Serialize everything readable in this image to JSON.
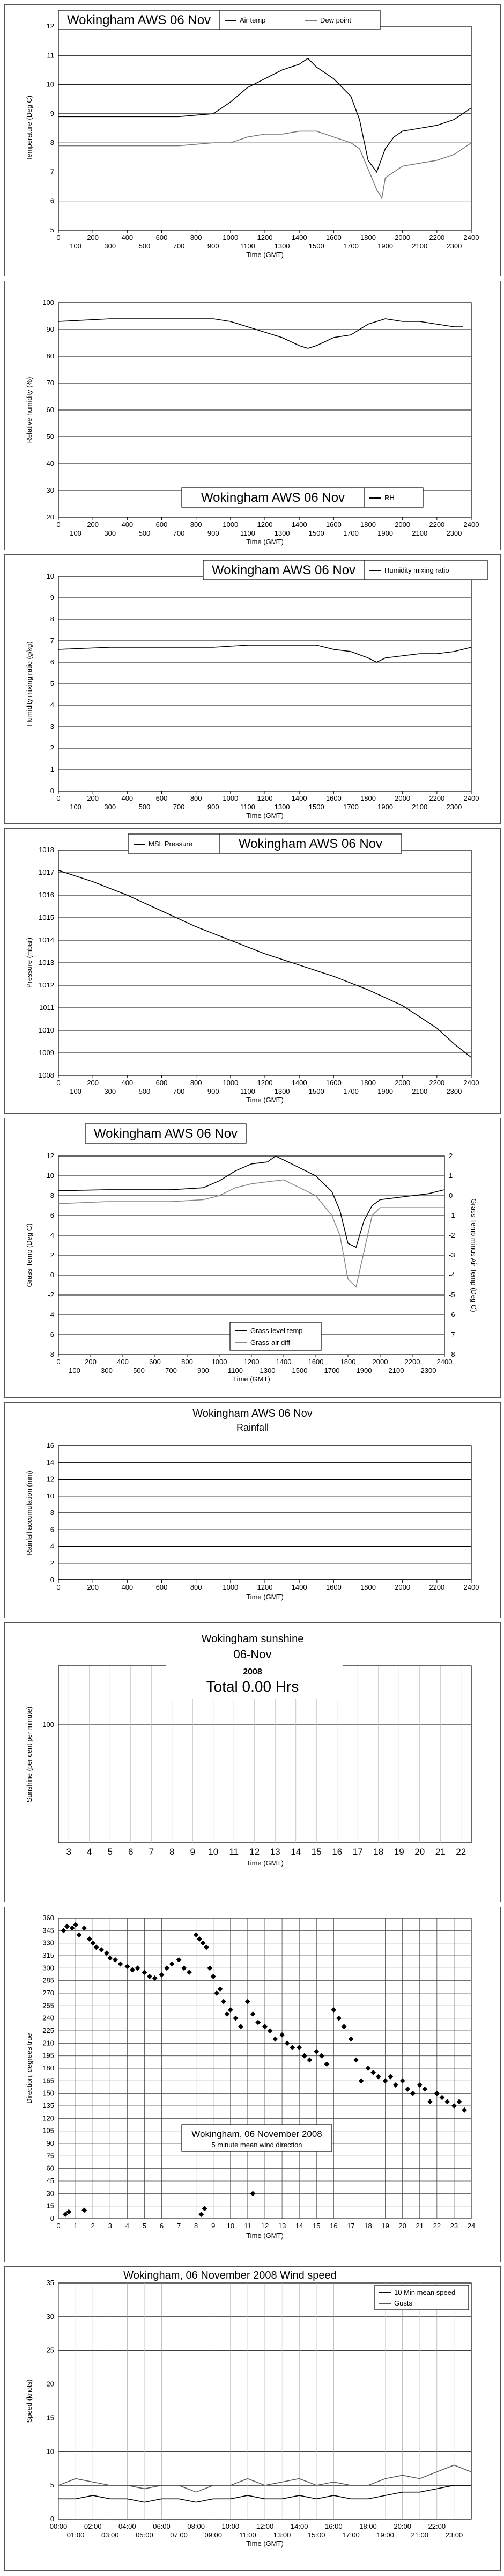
{
  "chart_data": [
    {
      "type": "line",
      "title": "Wokingham AWS 06 Nov",
      "xlabel": "Time (GMT)",
      "ylabel": "Temperature (Deg C)",
      "ylim": [
        5,
        12
      ],
      "xlim": [
        0,
        2400
      ],
      "yticks": [
        5,
        6,
        7,
        8,
        9,
        10,
        11,
        12
      ],
      "xticks_top": [
        "0",
        "200",
        "400",
        "600",
        "800",
        "1000",
        "1200",
        "1400",
        "1600",
        "1800",
        "2000",
        "2200",
        "2400"
      ],
      "xticks_bottom": [
        "100",
        "300",
        "500",
        "700",
        "900",
        "1100",
        "1300",
        "1500",
        "1700",
        "1900",
        "2100",
        "2300"
      ],
      "series": [
        {
          "name": "Air temp",
          "color": "#000000",
          "x": [
            0,
            300,
            700,
            900,
            1000,
            1100,
            1200,
            1300,
            1400,
            1450,
            1500,
            1600,
            1700,
            1750,
            1800,
            1850,
            1900,
            1950,
            2000,
            2100,
            2200,
            2300,
            2400
          ],
          "y": [
            8.9,
            8.9,
            8.9,
            9.0,
            9.4,
            9.9,
            10.2,
            10.5,
            10.7,
            10.9,
            10.6,
            10.2,
            9.6,
            8.8,
            7.4,
            7.0,
            7.8,
            8.2,
            8.4,
            8.5,
            8.6,
            8.8,
            9.2
          ]
        },
        {
          "name": "Dew point",
          "color": "#777777",
          "x": [
            0,
            300,
            700,
            900,
            1000,
            1100,
            1200,
            1300,
            1400,
            1500,
            1600,
            1700,
            1750,
            1800,
            1850,
            1880,
            1900,
            2000,
            2100,
            2200,
            2300,
            2400
          ],
          "y": [
            7.9,
            7.9,
            7.9,
            8.0,
            8.0,
            8.2,
            8.3,
            8.3,
            8.4,
            8.4,
            8.2,
            8.0,
            7.8,
            7.1,
            6.4,
            6.1,
            6.8,
            7.2,
            7.3,
            7.4,
            7.6,
            8.0
          ]
        }
      ]
    },
    {
      "type": "line",
      "title": "Wokingham AWS 06 Nov",
      "xlabel": "Time (GMT)",
      "ylabel": "Relative humidity (%)",
      "ylim": [
        20,
        100
      ],
      "xlim": [
        0,
        2400
      ],
      "yticks": [
        20,
        30,
        40,
        50,
        60,
        70,
        80,
        90,
        100
      ],
      "xticks_top": [
        "0",
        "200",
        "400",
        "600",
        "800",
        "1000",
        "1200",
        "1400",
        "1600",
        "1800",
        "2000",
        "2200",
        "2400"
      ],
      "xticks_bottom": [
        "100",
        "300",
        "500",
        "700",
        "900",
        "1100",
        "1300",
        "1500",
        "1700",
        "1900",
        "2100",
        "2300"
      ],
      "series": [
        {
          "name": "RH",
          "color": "#000000",
          "x": [
            0,
            300,
            600,
            900,
            1000,
            1100,
            1200,
            1300,
            1400,
            1450,
            1500,
            1600,
            1700,
            1800,
            1900,
            2000,
            2100,
            2200,
            2300,
            2350
          ],
          "y": [
            93,
            94,
            94,
            94,
            93,
            91,
            89,
            87,
            84,
            83,
            84,
            87,
            88,
            92,
            94,
            93,
            93,
            92,
            91,
            91
          ]
        }
      ]
    },
    {
      "type": "line",
      "title": "Wokingham AWS 06 Nov",
      "xlabel": "Time (GMT)",
      "ylabel": "Humidity mixing ratio (g/kg)",
      "ylim": [
        0,
        10
      ],
      "xlim": [
        0,
        2400
      ],
      "yticks": [
        0,
        1,
        2,
        3,
        4,
        5,
        6,
        7,
        8,
        9,
        10
      ],
      "xticks_top": [
        "0",
        "200",
        "400",
        "600",
        "800",
        "1000",
        "1200",
        "1400",
        "1600",
        "1800",
        "2000",
        "2200",
        "2400"
      ],
      "xticks_bottom": [
        "100",
        "300",
        "500",
        "700",
        "900",
        "1100",
        "1300",
        "1500",
        "1700",
        "1900",
        "2100",
        "2300"
      ],
      "series": [
        {
          "name": "Humidity mixing ratio",
          "color": "#000000",
          "x": [
            0,
            300,
            600,
            900,
            1100,
            1300,
            1500,
            1600,
            1700,
            1800,
            1850,
            1900,
            2000,
            2100,
            2200,
            2300,
            2400
          ],
          "y": [
            6.6,
            6.7,
            6.7,
            6.7,
            6.8,
            6.8,
            6.8,
            6.6,
            6.5,
            6.2,
            6.0,
            6.2,
            6.3,
            6.4,
            6.4,
            6.5,
            6.7
          ]
        }
      ]
    },
    {
      "type": "line",
      "title": "Wokingham AWS 06 Nov",
      "xlabel": "Time (GMT)",
      "ylabel": "Pressure (mbar)",
      "ylim": [
        1008,
        1018
      ],
      "xlim": [
        0,
        2400
      ],
      "yticks": [
        1008,
        1009,
        1010,
        1011,
        1012,
        1013,
        1014,
        1015,
        1016,
        1017,
        1018
      ],
      "xticks_top": [
        "0",
        "200",
        "400",
        "600",
        "800",
        "1000",
        "1200",
        "1400",
        "1600",
        "1800",
        "2000",
        "2200",
        "2400"
      ],
      "xticks_bottom": [
        "100",
        "300",
        "500",
        "700",
        "900",
        "1100",
        "1300",
        "1500",
        "1700",
        "1900",
        "2100",
        "2300"
      ],
      "series": [
        {
          "name": "MSL Pressure",
          "color": "#000000",
          "x": [
            0,
            200,
            400,
            600,
            800,
            1000,
            1200,
            1400,
            1600,
            1800,
            2000,
            2200,
            2300,
            2400
          ],
          "y": [
            1017.1,
            1016.6,
            1016.0,
            1015.3,
            1014.6,
            1014.0,
            1013.4,
            1012.9,
            1012.4,
            1011.8,
            1011.1,
            1010.1,
            1009.4,
            1008.8
          ]
        }
      ]
    },
    {
      "type": "line",
      "title": "Wokingham AWS 06 Nov",
      "xlabel": "Time (GMT)",
      "ylabel": "Grass Temp (Deg C)",
      "ylabel_right": "Grass Temp minus Air Temp (Deg C)",
      "ylim": [
        -8,
        12
      ],
      "ylim_right": [
        -8,
        2
      ],
      "xlim": [
        0,
        2400
      ],
      "yticks": [
        -8,
        -6,
        -4,
        -2,
        0,
        2,
        4,
        6,
        8,
        10,
        12
      ],
      "yticks_right": [
        -8,
        -7,
        -6,
        -5,
        -4,
        -3,
        -2,
        -1,
        0,
        1,
        2
      ],
      "xticks_top": [
        "0",
        "200",
        "400",
        "600",
        "800",
        "1000",
        "1200",
        "1400",
        "1600",
        "1800",
        "2000",
        "2200",
        "2400"
      ],
      "xticks_bottom": [
        "100",
        "300",
        "500",
        "700",
        "900",
        "1100",
        "1300",
        "1500",
        "1700",
        "1900",
        "2100",
        "2300"
      ],
      "series": [
        {
          "name": "Grass level temp",
          "color": "#000000",
          "axis": "left",
          "x": [
            0,
            300,
            700,
            900,
            1000,
            1100,
            1200,
            1300,
            1350,
            1400,
            1500,
            1600,
            1700,
            1750,
            1800,
            1850,
            1900,
            1950,
            2000,
            2100,
            2200,
            2300,
            2400
          ],
          "y": [
            8.5,
            8.6,
            8.6,
            8.8,
            9.5,
            10.5,
            11.2,
            11.4,
            12.0,
            11.6,
            10.8,
            10.0,
            8.4,
            6.5,
            3.2,
            2.8,
            5.5,
            7.0,
            7.6,
            7.8,
            8.0,
            8.2,
            8.6
          ]
        },
        {
          "name": "Grass-air diff",
          "color": "#888888",
          "axis": "right",
          "x": [
            0,
            300,
            700,
            900,
            1000,
            1100,
            1200,
            1300,
            1400,
            1500,
            1600,
            1700,
            1750,
            1800,
            1850,
            1900,
            1950,
            2000,
            2100,
            2200,
            2300,
            2400
          ],
          "y": [
            -0.4,
            -0.3,
            -0.3,
            -0.2,
            0.0,
            0.4,
            0.6,
            0.7,
            0.8,
            0.4,
            0.0,
            -1.0,
            -2.0,
            -4.2,
            -4.6,
            -2.8,
            -1.0,
            -0.6,
            -0.6,
            -0.6,
            -0.6,
            -0.6
          ]
        }
      ]
    },
    {
      "type": "line",
      "title": "Wokingham AWS 06 Nov",
      "subtitle": "Rainfall",
      "xlabel": "Time (GMT)",
      "ylabel": "Rainfall accumulation (mm)",
      "ylim": [
        0,
        16
      ],
      "xlim": [
        0,
        2400
      ],
      "yticks": [
        0,
        2,
        4,
        6,
        8,
        10,
        12,
        14,
        16
      ],
      "xticks": [
        "0",
        "200",
        "400",
        "600",
        "800",
        "1000",
        "1200",
        "1400",
        "1600",
        "1800",
        "2000",
        "2200",
        "2400"
      ],
      "series": [
        {
          "name": "",
          "color": "#000000",
          "x": [
            0,
            2400
          ],
          "y": [
            0,
            0
          ]
        }
      ]
    },
    {
      "type": "bar",
      "title": "Wokingham sunshine",
      "date": "06-Nov",
      "year": "2008",
      "total": "Total 0.00 Hrs",
      "xlabel": "Time (GMT)",
      "ylabel": "Sunshine (per cent per minute)",
      "ylim": [
        0,
        150
      ],
      "yticks": [
        100
      ],
      "categories": [
        "3",
        "4",
        "5",
        "6",
        "7",
        "8",
        "9",
        "10",
        "11",
        "12",
        "13",
        "14",
        "15",
        "16",
        "17",
        "18",
        "19",
        "20",
        "21",
        "22"
      ],
      "values": [
        0,
        0,
        0,
        0,
        0,
        0,
        0,
        0,
        0,
        0,
        0,
        0,
        0,
        0,
        0,
        0,
        0,
        0,
        0,
        0
      ]
    },
    {
      "type": "scatter",
      "title": "Wokingham,  06 November 2008",
      "subtitle": "5 minute mean wind direction",
      "xlabel": "Time (GMT)",
      "ylabel": "Direction, degrees true",
      "ylim": [
        0,
        360
      ],
      "xlim": [
        0,
        24
      ],
      "yticks": [
        0,
        15,
        30,
        45,
        60,
        75,
        90,
        105,
        120,
        135,
        150,
        165,
        180,
        195,
        210,
        225,
        240,
        255,
        270,
        285,
        300,
        315,
        330,
        345,
        360
      ],
      "xticks": [
        "0",
        "1",
        "2",
        "3",
        "4",
        "5",
        "6",
        "7",
        "8",
        "9",
        "10",
        "11",
        "12",
        "13",
        "14",
        "15",
        "16",
        "17",
        "18",
        "19",
        "20",
        "21",
        "22",
        "23",
        "24"
      ],
      "series": [
        {
          "name": "",
          "color": "#000000",
          "x": [
            0.3,
            0.5,
            0.8,
            1.0,
            1.2,
            1.5,
            1.8,
            2.0,
            2.2,
            2.5,
            2.8,
            3.0,
            3.3,
            3.6,
            4.0,
            4.3,
            4.6,
            5.0,
            5.3,
            5.6,
            6.0,
            6.3,
            6.6,
            7.0,
            7.3,
            7.6,
            8.0,
            8.2,
            8.4,
            8.6,
            8.8,
            9.0,
            9.2,
            9.4,
            9.6,
            9.8,
            10.0,
            10.3,
            10.6,
            11.0,
            11.3,
            11.6,
            12.0,
            12.3,
            12.6,
            13.0,
            13.3,
            13.6,
            14.0,
            14.3,
            14.6,
            15.0,
            15.3,
            15.6,
            16.0,
            16.3,
            16.6,
            17.0,
            17.3,
            17.6,
            18.0,
            18.3,
            18.6,
            19.0,
            19.3,
            19.6,
            20.0,
            20.3,
            20.6,
            21.0,
            21.3,
            21.6,
            22.0,
            22.3,
            22.6,
            23.0,
            23.3,
            23.6,
            0.4,
            0.6,
            1.5,
            8.3,
            8.5,
            11.3
          ],
          "y": [
            345,
            350,
            348,
            352,
            340,
            348,
            335,
            330,
            325,
            322,
            318,
            312,
            310,
            305,
            302,
            298,
            300,
            295,
            290,
            288,
            292,
            300,
            305,
            310,
            300,
            295,
            340,
            335,
            330,
            325,
            300,
            290,
            270,
            275,
            260,
            245,
            250,
            240,
            230,
            260,
            245,
            235,
            230,
            225,
            215,
            220,
            210,
            205,
            205,
            195,
            190,
            200,
            195,
            185,
            250,
            240,
            230,
            215,
            190,
            165,
            180,
            175,
            170,
            165,
            170,
            160,
            165,
            155,
            150,
            160,
            155,
            140,
            150,
            145,
            140,
            135,
            140,
            130,
            5,
            8,
            10,
            5,
            12,
            30
          ]
        }
      ]
    },
    {
      "type": "line",
      "title": "Wokingham,  06 November 2008    Wind speed",
      "xlabel": "Time (GMT)",
      "ylabel": "Speed (knots)",
      "ylim": [
        0,
        35
      ],
      "xlim": [
        0,
        24
      ],
      "yticks": [
        0,
        5,
        10,
        15,
        20,
        25,
        30,
        35
      ],
      "xticks_top": [
        "00:00",
        "02:00",
        "04:00",
        "06:00",
        "08:00",
        "10:00",
        "12:00",
        "14:00",
        "16:00",
        "18:00",
        "20:00",
        "22:00"
      ],
      "xticks_bottom": [
        "01:00",
        "03:00",
        "05:00",
        "07:00",
        "09:00",
        "11:00",
        "13:00",
        "15:00",
        "17:00",
        "19:00",
        "21:00",
        "23:00"
      ],
      "series": [
        {
          "name": "10 Min mean speed",
          "color": "#000000",
          "x": [
            0,
            1,
            2,
            3,
            4,
            5,
            6,
            7,
            8,
            9,
            10,
            11,
            12,
            13,
            14,
            15,
            16,
            17,
            18,
            19,
            20,
            21,
            22,
            23,
            24
          ],
          "y": [
            3,
            3,
            3.5,
            3,
            3,
            2.5,
            3,
            3,
            2.5,
            3,
            3,
            3.5,
            3,
            3,
            3.5,
            3,
            3.5,
            3,
            3,
            3.5,
            4,
            4,
            4.5,
            5,
            5
          ]
        },
        {
          "name": "Gusts",
          "color": "#555555",
          "x": [
            0,
            1,
            2,
            3,
            4,
            5,
            6,
            7,
            8,
            9,
            10,
            11,
            12,
            13,
            14,
            15,
            16,
            17,
            18,
            19,
            20,
            21,
            22,
            23,
            24
          ],
          "y": [
            5,
            6,
            5.5,
            5,
            5,
            4.5,
            5,
            5,
            4,
            5,
            5,
            6,
            5,
            5.5,
            6,
            5,
            5.5,
            5,
            5,
            6,
            6.5,
            6,
            7,
            8,
            7
          ]
        }
      ]
    }
  ]
}
